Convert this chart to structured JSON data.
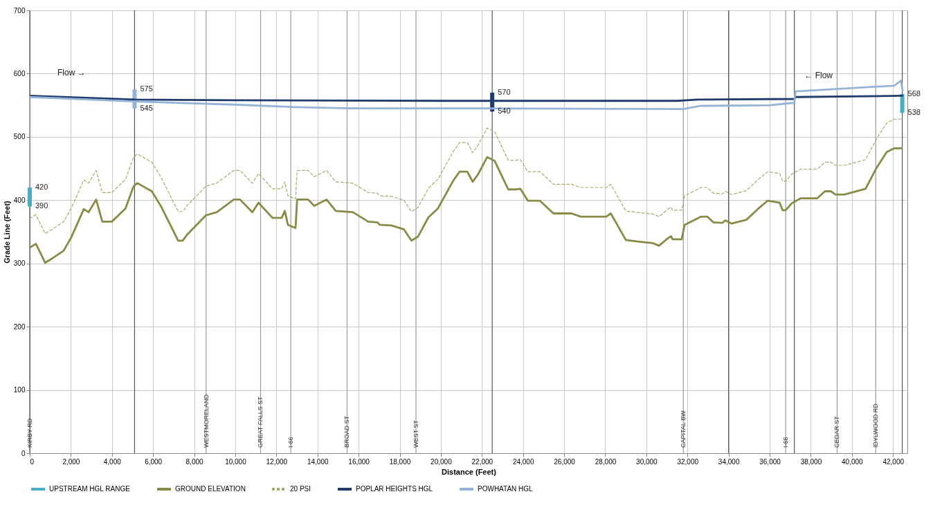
{
  "chart_data": {
    "type": "line",
    "xlabel": "Distance (Feet)",
    "ylabel": "Grade Line (Feet)",
    "xlim": [
      0,
      42700
    ],
    "ylim": [
      0,
      700
    ],
    "xticks": [
      0,
      {
        "value": 2000,
        "label": "2,000"
      },
      {
        "value": 4000,
        "label": "4,000"
      },
      {
        "value": 6000,
        "label": "6,000"
      },
      {
        "value": 8000,
        "label": "8,000"
      },
      {
        "value": 10000,
        "label": "10,000"
      },
      {
        "value": 12000,
        "label": "12,000"
      },
      {
        "value": 14000,
        "label": "14,000"
      },
      {
        "value": 16000,
        "label": "16,000"
      },
      {
        "value": 18000,
        "label": "18,000"
      },
      {
        "value": 20000,
        "label": "20,000"
      },
      {
        "value": 22000,
        "label": "22,000"
      },
      {
        "value": 24000,
        "label": "24,000"
      },
      {
        "value": 26000,
        "label": "26,000"
      },
      {
        "value": 28000,
        "label": "28,000"
      },
      {
        "value": 30000,
        "label": "30,000"
      },
      {
        "value": 32000,
        "label": "32,000"
      },
      {
        "value": 34000,
        "label": "34,000"
      },
      {
        "value": 36000,
        "label": "36,000"
      },
      {
        "value": 38000,
        "label": "38,000"
      },
      {
        "value": 40000,
        "label": "40,000"
      },
      {
        "value": 42000,
        "label": "42,000"
      }
    ],
    "yticks": [
      0,
      100,
      200,
      300,
      400,
      500,
      600,
      700
    ],
    "grid": true,
    "legend": "bottom",
    "series": [
      {
        "name": "UPSTREAM HGL RANGE",
        "type": "bar",
        "color": "#4bacc6",
        "colors": [
          "#4bacc6",
          "#95b3d7",
          "#1f3a6e",
          "#4bacc6"
        ],
        "x": [
          0,
          5100,
          22500,
          42450
        ],
        "base": [
          390,
          545,
          540,
          538
        ],
        "values": [
          30,
          30,
          30,
          30
        ]
      },
      {
        "name": "GROUND ELEVATION",
        "color": "#898a45",
        "line_style": "solid",
        "x": [
          0,
          300,
          750,
          1050,
          1650,
          2030,
          2630,
          2860,
          3230,
          3530,
          3990,
          4660,
          5040,
          5230,
          5940,
          6390,
          7220,
          7440,
          7670,
          8570,
          9100,
          9930,
          10230,
          10830,
          11130,
          11810,
          12260,
          12410,
          12560,
          12930,
          13010,
          13540,
          13840,
          14440,
          14890,
          15720,
          16470,
          16920,
          17020,
          17600,
          18200,
          18570,
          18880,
          19400,
          19860,
          20610,
          20910,
          21290,
          21550,
          21814,
          22254,
          22621,
          23281,
          23648,
          23868,
          24235,
          24822,
          25482,
          26362,
          26802,
          28049,
          28269,
          29003,
          29736,
          30323,
          30616,
          31056,
          31203,
          31276,
          31716,
          31863,
          32670,
          32963,
          33257,
          33697,
          33843,
          34137,
          34870,
          35457,
          35897,
          36484,
          36631,
          36778,
          37071,
          37511,
          38318,
          38685,
          38978,
          39198,
          39638,
          40445,
          40666,
          41179,
          41693,
          42060,
          42427
        ],
        "values": [
          325,
          331,
          301,
          307,
          320,
          342,
          386,
          381,
          401,
          366,
          366,
          387,
          421,
          427,
          414,
          390,
          336,
          336,
          346,
          376,
          381,
          401,
          401,
          381,
          396,
          372,
          372,
          383,
          361,
          356,
          401,
          401,
          391,
          401,
          383,
          381,
          366,
          365,
          361,
          360,
          354,
          336,
          342,
          373,
          387,
          431,
          445,
          445,
          429,
          441,
          468,
          462,
          417,
          417,
          418,
          399,
          399,
          379,
          379,
          374,
          374,
          379,
          337,
          334,
          332,
          328,
          340,
          343,
          338,
          338,
          361,
          374,
          374,
          365,
          364,
          368,
          363,
          369,
          387,
          399,
          396,
          384,
          384,
          395,
          403,
          403,
          414,
          414,
          409,
          409,
          416,
          418,
          450,
          476,
          482,
          482
        ]
      },
      {
        "name": "20 PSI",
        "color": "#a9a96a",
        "line_style": "dashed",
        "x": [
          0,
          300,
          750,
          1050,
          1650,
          2030,
          2630,
          2860,
          3230,
          3530,
          3990,
          4660,
          5040,
          5230,
          5940,
          6390,
          7220,
          7440,
          7670,
          8570,
          9100,
          9930,
          10230,
          10830,
          11130,
          11810,
          12260,
          12410,
          12560,
          12930,
          13010,
          13540,
          13840,
          14440,
          14890,
          15720,
          16470,
          16920,
          17020,
          17600,
          18200,
          18570,
          18880,
          19400,
          19860,
          20610,
          20910,
          21290,
          21550,
          21814,
          22254,
          22621,
          23281,
          23648,
          23868,
          24235,
          24822,
          25482,
          26362,
          26802,
          28049,
          28269,
          29003,
          29736,
          30323,
          30616,
          31056,
          31203,
          31276,
          31716,
          31863,
          32670,
          32963,
          33257,
          33697,
          33843,
          34137,
          34870,
          35457,
          35897,
          36484,
          36631,
          36778,
          37071,
          37511,
          38318,
          38685,
          38978,
          39198,
          39638,
          40445,
          40666,
          41179,
          41693,
          42060,
          42427
        ],
        "values": [
          371,
          377,
          347,
          353,
          366,
          388,
          432,
          427,
          447,
          412,
          412,
          433,
          467,
          473,
          460,
          436,
          382,
          382,
          392,
          422,
          427,
          447,
          447,
          427,
          442,
          418,
          418,
          429,
          407,
          402,
          447,
          447,
          437,
          447,
          429,
          427,
          412,
          411,
          407,
          406,
          400,
          382,
          388,
          419,
          433,
          477,
          491,
          491,
          475,
          487,
          514,
          508,
          463,
          463,
          464,
          445,
          445,
          425,
          425,
          420,
          420,
          425,
          383,
          380,
          378,
          374,
          386,
          389,
          384,
          384,
          407,
          420,
          420,
          411,
          410,
          414,
          409,
          415,
          433,
          445,
          442,
          430,
          430,
          441,
          449,
          449,
          460,
          460,
          455,
          455,
          462,
          464,
          496,
          522,
          528,
          528
        ]
      },
      {
        "name": "POPLAR HEIGHTS HGL",
        "color": "#1f3a6e",
        "line_style": "solid",
        "x": [
          0,
          5100,
          10000,
          20000,
          22500,
          31500,
          32500,
          37200,
          37250,
          42450
        ],
        "values": [
          565,
          559,
          558,
          557,
          557,
          557,
          559,
          560,
          563,
          565
        ]
      },
      {
        "name": "POWHATAN HGL",
        "color": "#95b3d7",
        "line_style": "solid",
        "x": [
          0,
          0,
          5100,
          10000,
          13000,
          16000,
          21600,
          31800,
          32600,
          36000,
          37200,
          37250,
          42060,
          42380,
          42470
        ],
        "values": [
          420,
          563,
          556,
          551,
          547,
          545,
          545,
          544,
          549,
          550,
          554,
          572,
          581,
          589,
          573
        ]
      }
    ],
    "ref_lines": [
      {
        "axis": "x",
        "value": 0,
        "label": "KIRBY RD",
        "color": "#555555"
      },
      {
        "axis": "x",
        "value": 8580,
        "label": "WESTMORELAND",
        "color": "#9a9a9a"
      },
      {
        "axis": "x",
        "value": 11230,
        "label": "GREAT FALLS ST",
        "color": "#9a9a9a"
      },
      {
        "axis": "x",
        "value": 12700,
        "label": "I-66",
        "color": "#9a9a9a"
      },
      {
        "axis": "x",
        "value": 15440,
        "label": "BROAD ST",
        "color": "#9a9a9a"
      },
      {
        "axis": "x",
        "value": 18790,
        "label": "WEST ST",
        "color": "#9a9a9a"
      },
      {
        "axis": "x",
        "value": 31800,
        "label": "CAPITAL BW",
        "color": "#9a9a9a"
      },
      {
        "axis": "x",
        "value": 36780,
        "label": "I-66",
        "color": "#9a9a9a"
      },
      {
        "axis": "x",
        "value": 39280,
        "label": "CEDAR ST",
        "color": "#9a9a9a"
      },
      {
        "axis": "x",
        "value": 41160,
        "label": "IDYLWOOD  RD",
        "color": "#9a9a9a"
      },
      {
        "axis": "x",
        "value": 5100,
        "color": "#555555"
      },
      {
        "axis": "x",
        "value": 22500,
        "color": "#555555"
      },
      {
        "axis": "x",
        "value": 34000,
        "color": "#555555"
      },
      {
        "axis": "x",
        "value": 37200,
        "color": "#555555"
      },
      {
        "axis": "x",
        "value": 42450,
        "color": "#555555"
      }
    ],
    "annotations": [
      "Flow  →",
      "←  Flow",
      {
        "text": "420",
        "x": 0,
        "y": 420
      },
      {
        "text": "390",
        "x": 0,
        "y": 390
      },
      {
        "text": "575",
        "x": 5100,
        "y": 575
      },
      {
        "text": "545",
        "x": 5100,
        "y": 545
      },
      {
        "text": "570",
        "x": 22500,
        "y": 570
      },
      {
        "text": "540",
        "x": 22500,
        "y": 540
      },
      {
        "text": "568",
        "x": 42450,
        "y": 568
      },
      {
        "text": "538",
        "x": 42450,
        "y": 538
      }
    ]
  }
}
